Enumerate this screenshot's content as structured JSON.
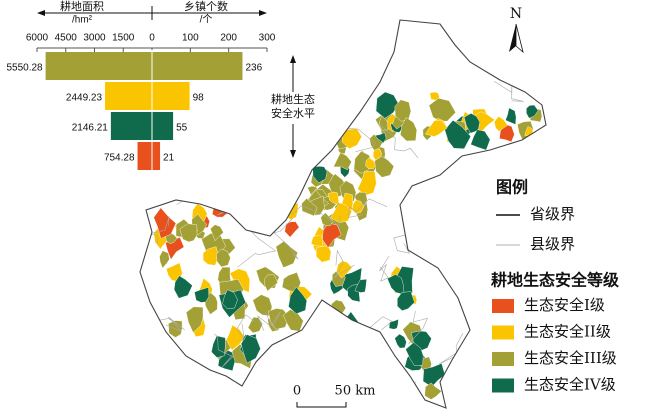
{
  "chart_data": {
    "type": "butterfly-bar",
    "left_axis_label": [
      "耕地面积",
      "/hm²"
    ],
    "right_axis_label": [
      "乡镇个数",
      "/个"
    ],
    "y_label": [
      "耕地生态",
      "安全水平"
    ],
    "xlim": [
      6000,
      0
    ],
    "xticks": [
      6000,
      4500,
      3000,
      1500
    ],
    "x2lim": [
      0,
      300
    ],
    "x2ticks": [
      0,
      100,
      200,
      300
    ],
    "colors": [
      "#a3a035",
      "#fbc400",
      "#0f6b4c",
      "#e8501d"
    ],
    "series": [
      {
        "values": [
          5550.28,
          2449.23,
          2146.21,
          754.28
        ]
      },
      {
        "values": [
          236,
          98,
          55,
          21
        ],
        "axis": "x2"
      }
    ]
  },
  "map": {
    "north": "N",
    "scale": [
      "0",
      "50 km"
    ]
  },
  "legend": {
    "title": "图例",
    "boundaries": [
      "省级界",
      "县级界"
    ],
    "levels_title": "耕地生态安全等级",
    "levels": [
      {
        "label": "生态安全I级",
        "color": "#e8501d"
      },
      {
        "label": "生态安全II级",
        "color": "#fbc400"
      },
      {
        "label": "生态安全III级",
        "color": "#a3a035"
      },
      {
        "label": "生态安全IV级",
        "color": "#0f6b4c"
      }
    ]
  }
}
